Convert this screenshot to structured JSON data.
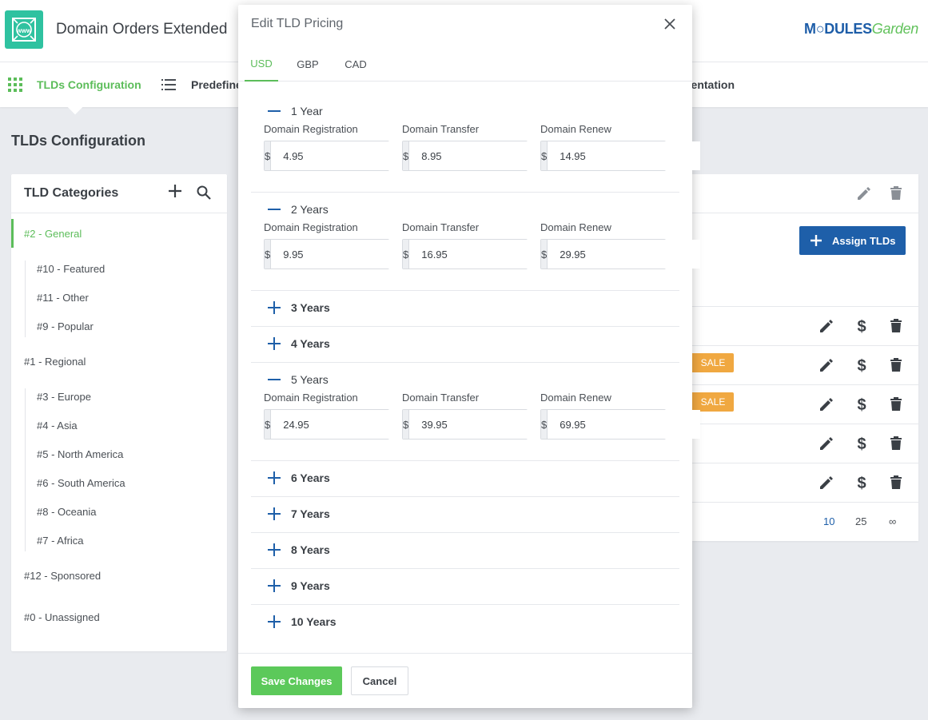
{
  "app": {
    "title": "Domain Orders Extended",
    "brand_main": "M○DULES",
    "brand_sub": "Garden"
  },
  "nav": {
    "items": [
      {
        "label": "TLDs Configuration"
      },
      {
        "label": "Predefine"
      },
      {
        "label": "nentation"
      }
    ]
  },
  "page": {
    "title": "TLDs Configuration"
  },
  "categories": {
    "title": "TLD Categories",
    "items": [
      {
        "label": "#2 - General"
      },
      {
        "label": "#10 - Featured"
      },
      {
        "label": "#11 - Other"
      },
      {
        "label": "#9 - Popular"
      },
      {
        "label": "#1 - Regional"
      },
      {
        "label": "#3 - Europe"
      },
      {
        "label": "#4 - Asia"
      },
      {
        "label": "#5 - North America"
      },
      {
        "label": "#6 - South America"
      },
      {
        "label": "#8 - Oceania"
      },
      {
        "label": "#7 - Africa"
      },
      {
        "label": "#12 - Sponsored"
      },
      {
        "label": "#0 - Unassigned"
      }
    ]
  },
  "right": {
    "assign_label": "Assign TLDs",
    "sale_label": "SALE",
    "pager": [
      "10",
      "25",
      "∞"
    ]
  },
  "modal": {
    "title": "Edit TLD Pricing",
    "tabs": [
      "USD",
      "GBP",
      "CAD"
    ],
    "field_labels": {
      "registration": "Domain Registration",
      "transfer": "Domain Transfer",
      "renew": "Domain Renew"
    },
    "currency_symbol": "$",
    "periods": [
      {
        "label": "1 Year",
        "registration": "4.95",
        "transfer": "8.95",
        "renew": "14.95"
      },
      {
        "label": "2 Years",
        "registration": "9.95",
        "transfer": "16.95",
        "renew": "29.95"
      },
      {
        "label": "3 Years"
      },
      {
        "label": "4 Years"
      },
      {
        "label": "5 Years",
        "registration": "24.95",
        "transfer": "39.95",
        "renew": "69.95"
      },
      {
        "label": "6 Years"
      },
      {
        "label": "7 Years"
      },
      {
        "label": "8 Years"
      },
      {
        "label": "9 Years"
      },
      {
        "label": "10 Years"
      }
    ],
    "save_label": "Save Changes",
    "cancel_label": "Cancel"
  },
  "colors": {
    "accent_green": "#5cbd5a",
    "primary_blue": "#1e5fa9",
    "sale_orange": "#f0a841"
  }
}
